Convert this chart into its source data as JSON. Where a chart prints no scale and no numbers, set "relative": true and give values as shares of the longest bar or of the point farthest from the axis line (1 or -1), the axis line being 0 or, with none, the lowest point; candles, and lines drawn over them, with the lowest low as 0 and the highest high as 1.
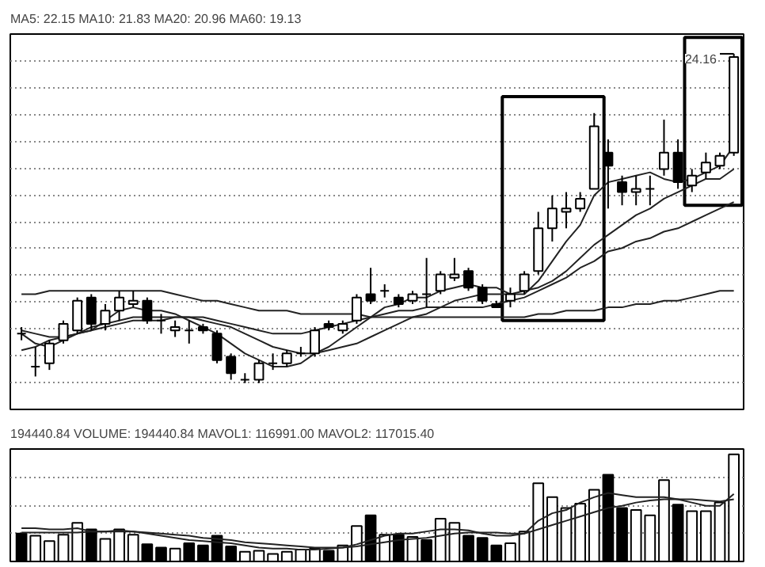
{
  "chart_data": [
    {
      "type": "candlestick",
      "title": "MA5: 22.15 MA10: 21.83 MA20: 20.96 MA60: 19.13",
      "relative": true,
      "grid": "y",
      "categories": [
        null,
        null,
        null,
        null,
        null,
        null,
        null,
        null,
        null,
        null,
        null,
        null,
        null,
        null,
        null,
        null,
        null,
        null,
        null,
        null,
        null,
        null,
        null,
        null,
        null,
        null,
        null,
        null,
        null,
        null,
        null,
        null,
        null,
        null,
        null,
        null,
        null,
        null,
        null,
        null,
        null,
        null,
        null,
        null,
        null,
        null,
        null,
        null,
        null,
        null,
        null,
        null
      ],
      "ohlc": [
        [
          0.15,
          0.17,
          0.13,
          0.15
        ],
        [
          0.05,
          0.11,
          0.02,
          0.05
        ],
        [
          0.06,
          0.13,
          0.04,
          0.12
        ],
        [
          0.13,
          0.19,
          0.12,
          0.18
        ],
        [
          0.16,
          0.26,
          0.15,
          0.25
        ],
        [
          0.26,
          0.27,
          0.16,
          0.18
        ],
        [
          0.18,
          0.24,
          0.16,
          0.22
        ],
        [
          0.22,
          0.28,
          0.19,
          0.26
        ],
        [
          0.24,
          0.28,
          0.23,
          0.25
        ],
        [
          0.25,
          0.26,
          0.18,
          0.19
        ],
        [
          0.19,
          0.21,
          0.15,
          0.19
        ],
        [
          0.16,
          0.19,
          0.14,
          0.17
        ],
        [
          0.16,
          0.19,
          0.12,
          0.16
        ],
        [
          0.17,
          0.18,
          0.15,
          0.16
        ],
        [
          0.15,
          0.16,
          0.06,
          0.07
        ],
        [
          0.08,
          0.09,
          0.01,
          0.03
        ],
        [
          0.01,
          0.03,
          0.0,
          0.01
        ],
        [
          0.01,
          0.07,
          0.0,
          0.06
        ],
        [
          0.06,
          0.09,
          0.04,
          0.06
        ],
        [
          0.06,
          0.1,
          0.05,
          0.09
        ],
        [
          0.09,
          0.11,
          0.08,
          0.09
        ],
        [
          0.09,
          0.17,
          0.08,
          0.16
        ],
        [
          0.18,
          0.19,
          0.16,
          0.17
        ],
        [
          0.16,
          0.19,
          0.15,
          0.18
        ],
        [
          0.19,
          0.27,
          0.18,
          0.26
        ],
        [
          0.27,
          0.35,
          0.24,
          0.25
        ],
        [
          0.28,
          0.3,
          0.26,
          0.28
        ],
        [
          0.26,
          0.27,
          0.23,
          0.24
        ],
        [
          0.25,
          0.28,
          0.24,
          0.27
        ],
        [
          0.27,
          0.38,
          0.23,
          0.27
        ],
        [
          0.28,
          0.34,
          0.27,
          0.33
        ],
        [
          0.32,
          0.38,
          0.31,
          0.33
        ],
        [
          0.34,
          0.35,
          0.28,
          0.29
        ],
        [
          0.29,
          0.3,
          0.24,
          0.25
        ],
        [
          0.24,
          0.25,
          0.23,
          0.23
        ],
        [
          0.25,
          0.29,
          0.23,
          0.27
        ],
        [
          0.28,
          0.34,
          0.27,
          0.33
        ],
        [
          0.34,
          0.52,
          0.33,
          0.47
        ],
        [
          0.47,
          0.57,
          0.43,
          0.53
        ],
        [
          0.52,
          0.58,
          0.47,
          0.53
        ],
        [
          0.53,
          0.58,
          0.52,
          0.56
        ],
        [
          0.59,
          0.82,
          0.59,
          0.78
        ],
        [
          0.7,
          0.74,
          0.53,
          0.66
        ],
        [
          0.61,
          0.63,
          0.54,
          0.58
        ],
        [
          0.58,
          0.63,
          0.54,
          0.59
        ],
        [
          0.59,
          0.63,
          0.54,
          0.59
        ],
        [
          0.65,
          0.8,
          0.63,
          0.7
        ],
        [
          0.7,
          0.74,
          0.59,
          0.61
        ],
        [
          0.6,
          0.65,
          0.58,
          0.63
        ],
        [
          0.64,
          0.7,
          0.62,
          0.67
        ],
        [
          0.66,
          0.7,
          0.65,
          0.69
        ],
        [
          0.7,
          1.0,
          0.69,
          0.99
        ]
      ],
      "series": [
        {
          "type": "line",
          "color": "#222222",
          "values": [
            0.15,
            0.12,
            0.11,
            0.13,
            0.15,
            0.16,
            0.19,
            0.22,
            0.23,
            0.22,
            0.22,
            0.21,
            0.19,
            0.17,
            0.15,
            0.12,
            0.09,
            0.07,
            0.05,
            0.05,
            0.06,
            0.09,
            0.11,
            0.14,
            0.17,
            0.2,
            0.23,
            0.24,
            0.26,
            0.26,
            0.28,
            0.29,
            0.3,
            0.29,
            0.29,
            0.27,
            0.27,
            0.31,
            0.37,
            0.43,
            0.48,
            0.57,
            0.61,
            0.62,
            0.63,
            0.64,
            0.62,
            0.61,
            0.62,
            0.64,
            0.66,
            0.72
          ]
        },
        {
          "type": "line",
          "color": "#222222",
          "values": [
            0.16,
            0.15,
            0.14,
            0.14,
            0.15,
            0.16,
            0.17,
            0.18,
            0.19,
            0.19,
            0.19,
            0.2,
            0.2,
            0.19,
            0.18,
            0.17,
            0.15,
            0.13,
            0.11,
            0.1,
            0.09,
            0.09,
            0.1,
            0.11,
            0.12,
            0.14,
            0.16,
            0.18,
            0.2,
            0.21,
            0.23,
            0.25,
            0.26,
            0.27,
            0.27,
            0.27,
            0.28,
            0.29,
            0.31,
            0.34,
            0.38,
            0.42,
            0.45,
            0.48,
            0.51,
            0.53,
            0.56,
            0.58,
            0.6,
            0.62,
            0.62,
            0.65
          ]
        },
        {
          "type": "line",
          "color": "#222222",
          "values": [
            0.1,
            0.11,
            0.13,
            0.14,
            0.15,
            0.17,
            0.18,
            0.19,
            0.2,
            0.2,
            0.2,
            0.2,
            0.2,
            0.2,
            0.19,
            0.18,
            0.17,
            0.16,
            0.15,
            0.15,
            0.15,
            0.16,
            0.17,
            0.18,
            0.19,
            0.2,
            0.21,
            0.22,
            0.22,
            0.23,
            0.23,
            0.23,
            0.23,
            0.23,
            0.24,
            0.25,
            0.26,
            0.28,
            0.3,
            0.32,
            0.35,
            0.37,
            0.4,
            0.41,
            0.43,
            0.44,
            0.46,
            0.47,
            0.49,
            0.51,
            0.53,
            0.55
          ]
        },
        {
          "type": "line",
          "color": "#222222",
          "values": [
            0.27,
            0.27,
            0.28,
            0.28,
            0.28,
            0.28,
            0.28,
            0.28,
            0.28,
            0.28,
            0.28,
            0.27,
            0.26,
            0.25,
            0.25,
            0.24,
            0.23,
            0.22,
            0.22,
            0.22,
            0.21,
            0.21,
            0.21,
            0.21,
            0.21,
            0.2,
            0.2,
            0.2,
            0.2,
            0.2,
            0.2,
            0.2,
            0.2,
            0.2,
            0.2,
            0.2,
            0.2,
            0.21,
            0.21,
            0.22,
            0.22,
            0.22,
            0.23,
            0.23,
            0.24,
            0.24,
            0.25,
            0.25,
            0.26,
            0.27,
            0.28,
            0.28
          ]
        }
      ],
      "annotations": [
        "24.16"
      ]
    },
    {
      "type": "bar",
      "title": "194440.84  VOLUME: 194440.84  MAVOL1: 116991.00  MAVOL2: 117015.40",
      "relative": true,
      "grid": "y",
      "categories": [
        null,
        null,
        null,
        null,
        null,
        null,
        null,
        null,
        null,
        null,
        null,
        null,
        null,
        null,
        null,
        null,
        null,
        null,
        null,
        null,
        null,
        null,
        null,
        null,
        null,
        null,
        null,
        null,
        null,
        null,
        null,
        null,
        null,
        null,
        null,
        null,
        null,
        null,
        null,
        null,
        null,
        null,
        null,
        null,
        null,
        null,
        null,
        null,
        null,
        null,
        null,
        null
      ],
      "values": [
        0.26,
        0.24,
        0.19,
        0.25,
        0.36,
        0.3,
        0.21,
        0.3,
        0.25,
        0.16,
        0.13,
        0.12,
        0.17,
        0.15,
        0.24,
        0.14,
        0.09,
        0.1,
        0.07,
        0.09,
        0.11,
        0.12,
        0.1,
        0.15,
        0.33,
        0.43,
        0.25,
        0.25,
        0.23,
        0.2,
        0.4,
        0.36,
        0.24,
        0.22,
        0.15,
        0.17,
        0.28,
        0.73,
        0.6,
        0.5,
        0.54,
        0.67,
        0.81,
        0.5,
        0.48,
        0.43,
        0.76,
        0.53,
        0.47,
        0.47,
        0.55,
        1.0
      ],
      "colors": [
        "#000000",
        "#ffffff",
        "#ffffff",
        "#ffffff",
        "#ffffff",
        "#000000",
        "#ffffff",
        "#ffffff",
        "#ffffff",
        "#000000",
        "#000000",
        "#ffffff",
        "#000000",
        "#000000",
        "#000000",
        "#000000",
        "#ffffff",
        "#ffffff",
        "#ffffff",
        "#ffffff",
        "#ffffff",
        "#ffffff",
        "#000000",
        "#ffffff",
        "#ffffff",
        "#000000",
        "#ffffff",
        "#000000",
        "#ffffff",
        "#000000",
        "#ffffff",
        "#ffffff",
        "#000000",
        "#000000",
        "#000000",
        "#ffffff",
        "#ffffff",
        "#ffffff",
        "#ffffff",
        "#ffffff",
        "#ffffff",
        "#ffffff",
        "#000000",
        "#000000",
        "#ffffff",
        "#ffffff",
        "#ffffff",
        "#000000",
        "#ffffff",
        "#ffffff",
        "#ffffff",
        "#ffffff"
      ],
      "series": [
        {
          "type": "line",
          "color": "#222222",
          "values": [
            0.31,
            0.31,
            0.3,
            0.3,
            0.31,
            0.28,
            0.28,
            0.29,
            0.28,
            0.26,
            0.24,
            0.22,
            0.2,
            0.19,
            0.18,
            0.17,
            0.15,
            0.13,
            0.12,
            0.12,
            0.11,
            0.11,
            0.12,
            0.13,
            0.16,
            0.2,
            0.24,
            0.26,
            0.26,
            0.28,
            0.3,
            0.3,
            0.29,
            0.26,
            0.24,
            0.24,
            0.26,
            0.38,
            0.45,
            0.48,
            0.55,
            0.6,
            0.64,
            0.62,
            0.6,
            0.6,
            0.6,
            0.58,
            0.55,
            0.52,
            0.52,
            0.63
          ]
        },
        {
          "type": "line",
          "color": "#222222",
          "values": [
            0.27,
            0.27,
            0.27,
            0.27,
            0.27,
            0.28,
            0.28,
            0.28,
            0.28,
            0.27,
            0.26,
            0.25,
            0.24,
            0.22,
            0.21,
            0.2,
            0.18,
            0.17,
            0.16,
            0.15,
            0.14,
            0.13,
            0.13,
            0.13,
            0.14,
            0.16,
            0.18,
            0.2,
            0.21,
            0.22,
            0.24,
            0.26,
            0.27,
            0.27,
            0.27,
            0.26,
            0.26,
            0.3,
            0.34,
            0.38,
            0.42,
            0.46,
            0.5,
            0.52,
            0.55,
            0.57,
            0.58,
            0.58,
            0.58,
            0.57,
            0.56,
            0.58
          ]
        }
      ]
    }
  ]
}
